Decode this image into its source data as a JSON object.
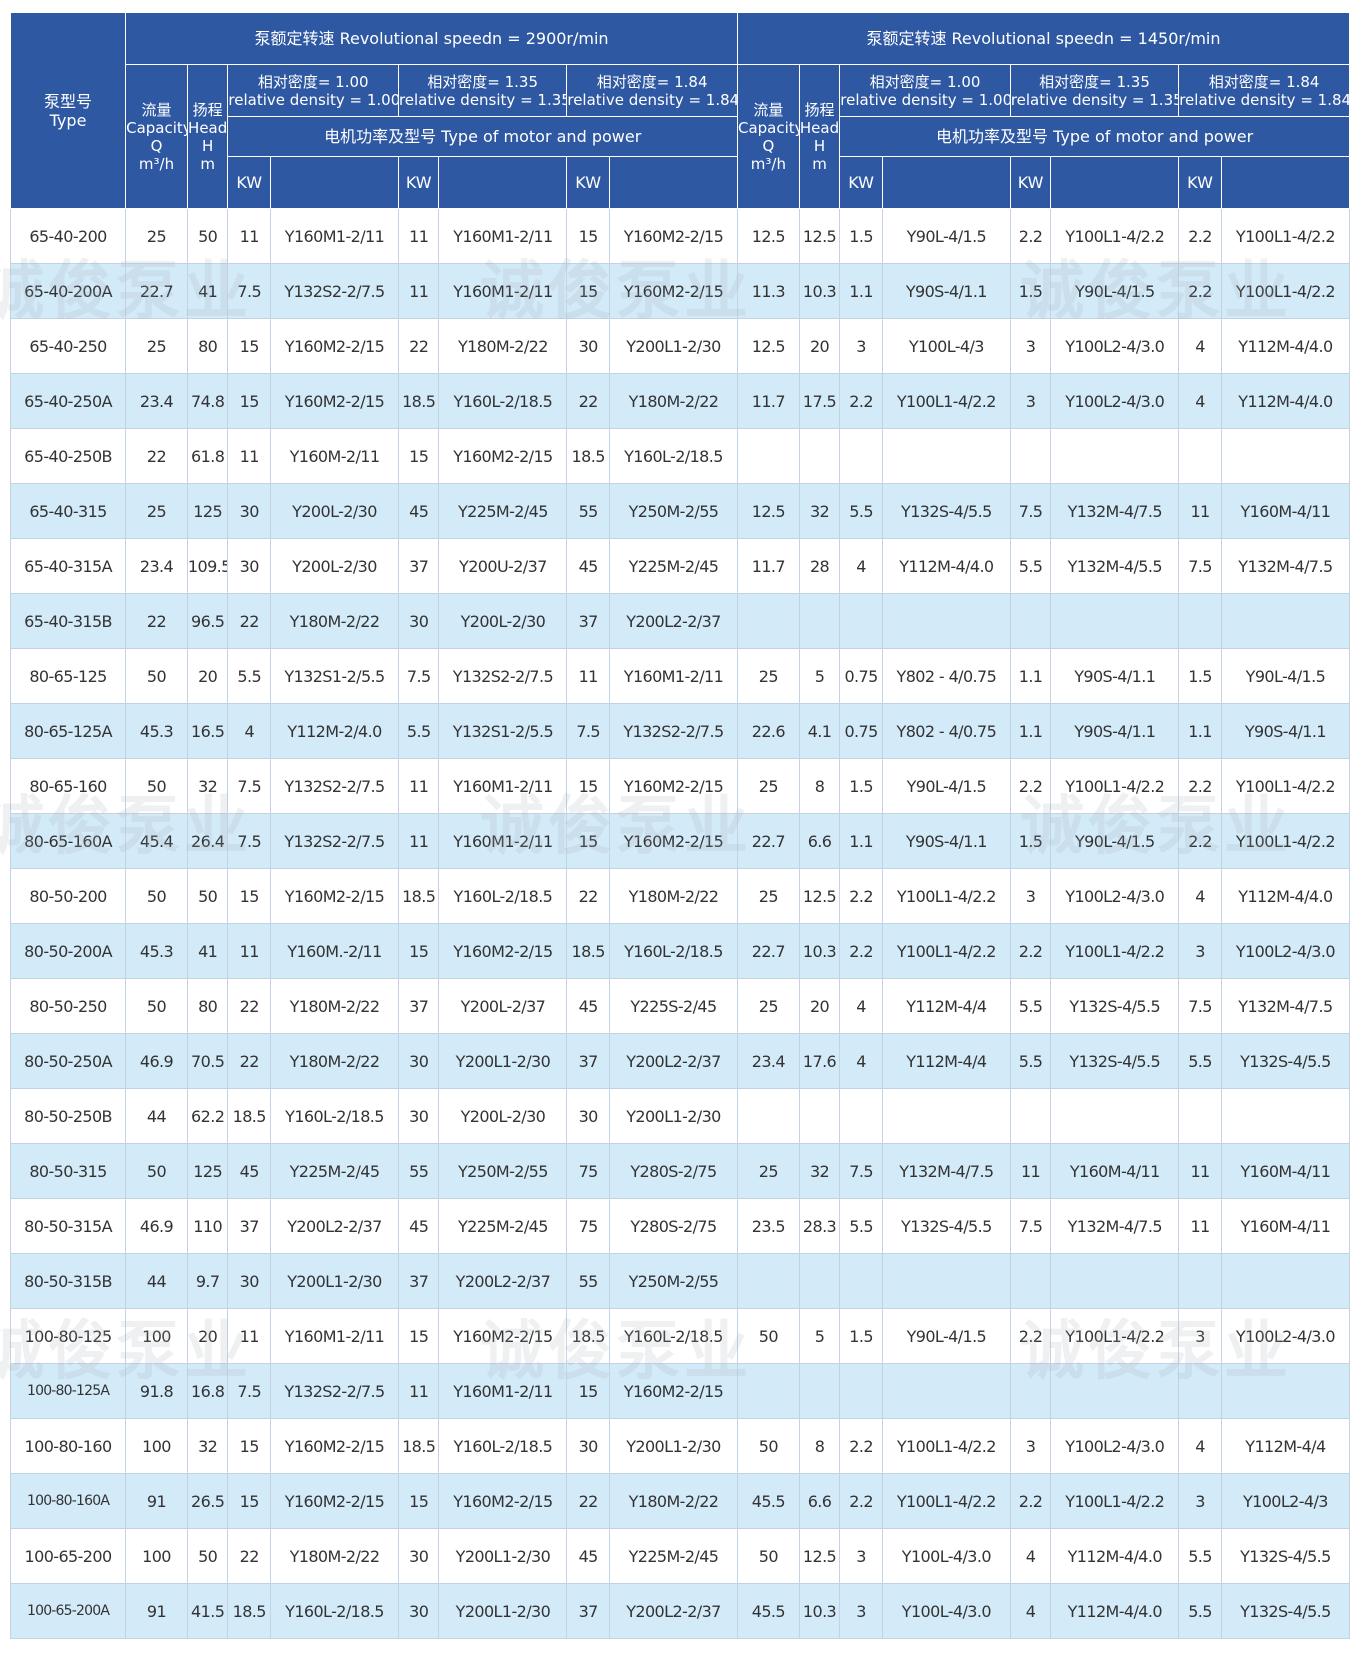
{
  "header": {
    "type_label": [
      "泵型号",
      "Type"
    ],
    "speed_2900": "泵额定转速 Revolutional speedn = 2900r/min",
    "speed_1450": "泵额定转速 Revolutional speedn = 1450r/min",
    "capacity": [
      "流量",
      "Capacity",
      "Q",
      "m³/h"
    ],
    "head": [
      "扬程",
      "Head",
      "H",
      "m"
    ],
    "densities": [
      [
        "相对密度= 1.00",
        "relative density = 1.00"
      ],
      [
        "相对密度= 1.35",
        "relative density = 1.35"
      ],
      [
        "相对密度= 1.84",
        "relative density = 1.84"
      ]
    ],
    "motor_label": "电机功率及型号 Type of motor and power",
    "kw": "KW"
  },
  "watermark": "诚俊泵业",
  "rows": [
    [
      "65-40-200",
      "25",
      "50",
      "11",
      "Y160M1-2/11",
      "11",
      "Y160M1-2/11",
      "15",
      "Y160M2-2/15",
      "12.5",
      "12.5",
      "1.5",
      "Y90L-4/1.5",
      "2.2",
      "Y100L1-4/2.2",
      "2.2",
      "Y100L1-4/2.2"
    ],
    [
      "65-40-200A",
      "22.7",
      "41",
      "7.5",
      "Y132S2-2/7.5",
      "11",
      "Y160M1-2/11",
      "15",
      "Y160M2-2/15",
      "11.3",
      "10.3",
      "1.1",
      "Y90S-4/1.1",
      "1.5",
      "Y90L-4/1.5",
      "2.2",
      "Y100L1-4/2.2"
    ],
    [
      "65-40-250",
      "25",
      "80",
      "15",
      "Y160M2-2/15",
      "22",
      "Y180M-2/22",
      "30",
      "Y200L1-2/30",
      "12.5",
      "20",
      "3",
      "Y100L-4/3",
      "3",
      "Y100L2-4/3.0",
      "4",
      "Y112M-4/4.0"
    ],
    [
      "65-40-250A",
      "23.4",
      "74.8",
      "15",
      "Y160M2-2/15",
      "18.5",
      "Y160L-2/18.5",
      "22",
      "Y180M-2/22",
      "11.7",
      "17.5",
      "2.2",
      "Y100L1-4/2.2",
      "3",
      "Y100L2-4/3.0",
      "4",
      "Y112M-4/4.0"
    ],
    [
      "65-40-250B",
      "22",
      "61.8",
      "11",
      "Y160M-2/11",
      "15",
      "Y160M2-2/15",
      "18.5",
      "Y160L-2/18.5",
      "",
      "",
      "",
      "",
      "",
      "",
      "",
      ""
    ],
    [
      "65-40-315",
      "25",
      "125",
      "30",
      "Y200L-2/30",
      "45",
      "Y225M-2/45",
      "55",
      "Y250M-2/55",
      "12.5",
      "32",
      "5.5",
      "Y132S-4/5.5",
      "7.5",
      "Y132M-4/7.5",
      "11",
      "Y160M-4/11"
    ],
    [
      "65-40-315A",
      "23.4",
      "109.5",
      "30",
      "Y200L-2/30",
      "37",
      "Y200U-2/37",
      "45",
      "Y225M-2/45",
      "11.7",
      "28",
      "4",
      "Y112M-4/4.0",
      "5.5",
      "Y132M-4/5.5",
      "7.5",
      "Y132M-4/7.5"
    ],
    [
      "65-40-315B",
      "22",
      "96.5",
      "22",
      "Y180M-2/22",
      "30",
      "Y200L-2/30",
      "37",
      "Y200L2-2/37",
      "",
      "",
      "",
      "",
      "",
      "",
      "",
      ""
    ],
    [
      "80-65-125",
      "50",
      "20",
      "5.5",
      "Y132S1-2/5.5",
      "7.5",
      "Y132S2-2/7.5",
      "11",
      "Y160M1-2/11",
      "25",
      "5",
      "0.75",
      "Y802 - 4/0.75",
      "1.1",
      "Y90S-4/1.1",
      "1.5",
      "Y90L-4/1.5"
    ],
    [
      "80-65-125A",
      "45.3",
      "16.5",
      "4",
      "Y112M-2/4.0",
      "5.5",
      "Y132S1-2/5.5",
      "7.5",
      "Y132S2-2/7.5",
      "22.6",
      "4.1",
      "0.75",
      "Y802 - 4/0.75",
      "1.1",
      "Y90S-4/1.1",
      "1.1",
      "Y90S-4/1.1"
    ],
    [
      "80-65-160",
      "50",
      "32",
      "7.5",
      "Y132S2-2/7.5",
      "11",
      "Y160M1-2/11",
      "15",
      "Y160M2-2/15",
      "25",
      "8",
      "1.5",
      "Y90L-4/1.5",
      "2.2",
      "Y100L1-4/2.2",
      "2.2",
      "Y100L1-4/2.2"
    ],
    [
      "80-65-160A",
      "45.4",
      "26.4",
      "7.5",
      "Y132S2-2/7.5",
      "11",
      "Y160M1-2/11",
      "15",
      "Y160M2-2/15",
      "22.7",
      "6.6",
      "1.1",
      "Y90S-4/1.1",
      "1.5",
      "Y90L-4/1.5",
      "2.2",
      "Y100L1-4/2.2"
    ],
    [
      "80-50-200",
      "50",
      "50",
      "15",
      "Y160M2-2/15",
      "18.5",
      "Y160L-2/18.5",
      "22",
      "Y180M-2/22",
      "25",
      "12.5",
      "2.2",
      "Y100L1-4/2.2",
      "3",
      "Y100L2-4/3.0",
      "4",
      "Y112M-4/4.0"
    ],
    [
      "80-50-200A",
      "45.3",
      "41",
      "11",
      "Y160M.-2/11",
      "15",
      "Y160M2-2/15",
      "18.5",
      "Y160L-2/18.5",
      "22.7",
      "10.3",
      "2.2",
      "Y100L1-4/2.2",
      "2.2",
      "Y100L1-4/2.2",
      "3",
      "Y100L2-4/3.0"
    ],
    [
      "80-50-250",
      "50",
      "80",
      "22",
      "Y180M-2/22",
      "37",
      "Y200L-2/37",
      "45",
      "Y225S-2/45",
      "25",
      "20",
      "4",
      "Y112M-4/4",
      "5.5",
      "Y132S-4/5.5",
      "7.5",
      "Y132M-4/7.5"
    ],
    [
      "80-50-250A",
      "46.9",
      "70.5",
      "22",
      "Y180M-2/22",
      "30",
      "Y200L1-2/30",
      "37",
      "Y200L2-2/37",
      "23.4",
      "17.6",
      "4",
      "Y112M-4/4",
      "5.5",
      "Y132S-4/5.5",
      "5.5",
      "Y132S-4/5.5"
    ],
    [
      "80-50-250B",
      "44",
      "62.2",
      "18.5",
      "Y160L-2/18.5",
      "30",
      "Y200L-2/30",
      "30",
      "Y200L1-2/30",
      "",
      "",
      "",
      "",
      "",
      "",
      "",
      ""
    ],
    [
      "80-50-315",
      "50",
      "125",
      "45",
      "Y225M-2/45",
      "55",
      "Y250M-2/55",
      "75",
      "Y280S-2/75",
      "25",
      "32",
      "7.5",
      "Y132M-4/7.5",
      "11",
      "Y160M-4/11",
      "11",
      "Y160M-4/11"
    ],
    [
      "80-50-315A",
      "46.9",
      "110",
      "37",
      "Y200L2-2/37",
      "45",
      "Y225M-2/45",
      "75",
      "Y280S-2/75",
      "23.5",
      "28.3",
      "5.5",
      "Y132S-4/5.5",
      "7.5",
      "Y132M-4/7.5",
      "11",
      "Y160M-4/11"
    ],
    [
      "80-50-315B",
      "44",
      "9.7",
      "30",
      "Y200L1-2/30",
      "37",
      "Y200L2-2/37",
      "55",
      "Y250M-2/55",
      "",
      "",
      "",
      "",
      "",
      "",
      "",
      ""
    ],
    [
      "100-80-125",
      "100",
      "20",
      "11",
      "Y160M1-2/11",
      "15",
      "Y160M2-2/15",
      "18.5",
      "Y160L-2/18.5",
      "50",
      "5",
      "1.5",
      "Y90L-4/1.5",
      "2.2",
      "Y100L1-4/2.2",
      "3",
      "Y100L2-4/3.0"
    ],
    [
      "100-80-125A",
      "91.8",
      "16.8",
      "7.5",
      "Y132S2-2/7.5",
      "11",
      "Y160M1-2/11",
      "15",
      "Y160M2-2/15",
      "",
      "",
      "",
      "",
      "",
      "",
      "",
      ""
    ],
    [
      "100-80-160",
      "100",
      "32",
      "15",
      "Y160M2-2/15",
      "18.5",
      "Y160L-2/18.5",
      "30",
      "Y200L1-2/30",
      "50",
      "8",
      "2.2",
      "Y100L1-4/2.2",
      "3",
      "Y100L2-4/3.0",
      "4",
      "Y112M-4/4"
    ],
    [
      "100-80-160A",
      "91",
      "26.5",
      "15",
      "Y160M2-2/15",
      "15",
      "Y160M2-2/15",
      "22",
      "Y180M-2/22",
      "45.5",
      "6.6",
      "2.2",
      "Y100L1-4/2.2",
      "2.2",
      "Y100L1-4/2.2",
      "3",
      "Y100L2-4/3"
    ],
    [
      "100-65-200",
      "100",
      "50",
      "22",
      "Y180M-2/22",
      "30",
      "Y200L1-2/30",
      "45",
      "Y225M-2/45",
      "50",
      "12.5",
      "3",
      "Y100L-4/3.0",
      "4",
      "Y112M-4/4.0",
      "5.5",
      "Y132S-4/5.5"
    ],
    [
      "100-65-200A",
      "91",
      "41.5",
      "18.5",
      "Y160L-2/18.5",
      "30",
      "Y200L1-2/30",
      "37",
      "Y200L2-2/37",
      "45.5",
      "10.3",
      "3",
      "Y100L-4/3.0",
      "4",
      "Y112M-4/4.0",
      "5.5",
      "Y132S-4/5.5"
    ]
  ]
}
